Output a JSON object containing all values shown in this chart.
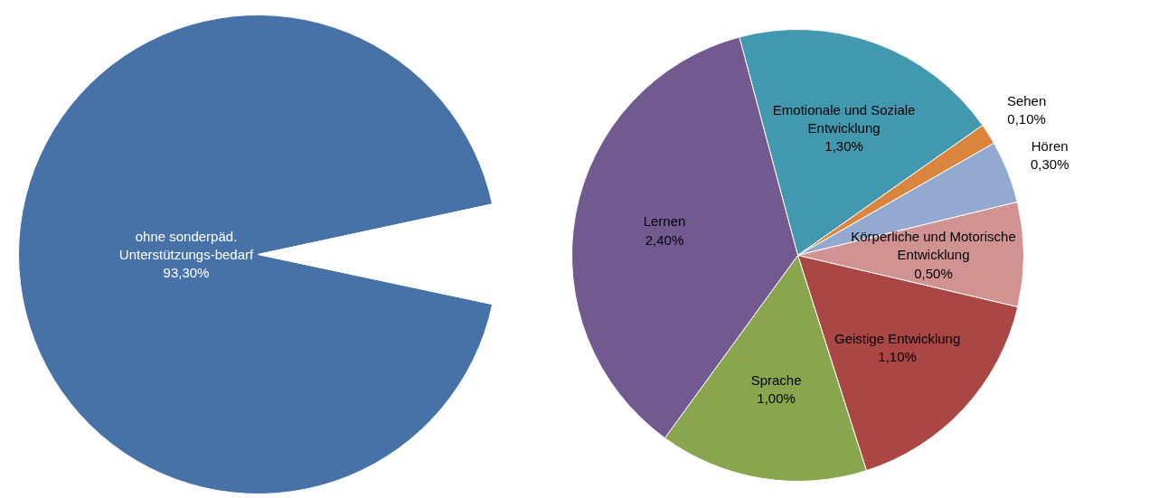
{
  "chart_data": [
    {
      "type": "pie",
      "categories": [
        "ohne sonderpäd. Unterstützungs-bedarf",
        null
      ],
      "values": [
        93.3,
        6.7
      ],
      "value_labels": [
        "93,30%",
        null
      ],
      "colors": [
        "#4672a8",
        "#ffffff"
      ]
    },
    {
      "type": "pie",
      "categories": [
        "Emotionale und Soziale Entwicklung",
        "Sehen",
        "Hören",
        "Körperliche und Motorische Entwicklung",
        "Geistige Entwicklung",
        "Sprache",
        "Lernen"
      ],
      "values": [
        1.3,
        0.1,
        0.3,
        0.5,
        1.1,
        1.0,
        2.4
      ],
      "value_labels": [
        "1,30%",
        "0,10%",
        "0,30%",
        "0,50%",
        "1,10%",
        "1,00%",
        "2,40%"
      ],
      "colors": [
        "#4298ae",
        "#db843d",
        "#93a9cf",
        "#d19392",
        "#aa4643",
        "#89a54e",
        "#725990"
      ]
    }
  ]
}
